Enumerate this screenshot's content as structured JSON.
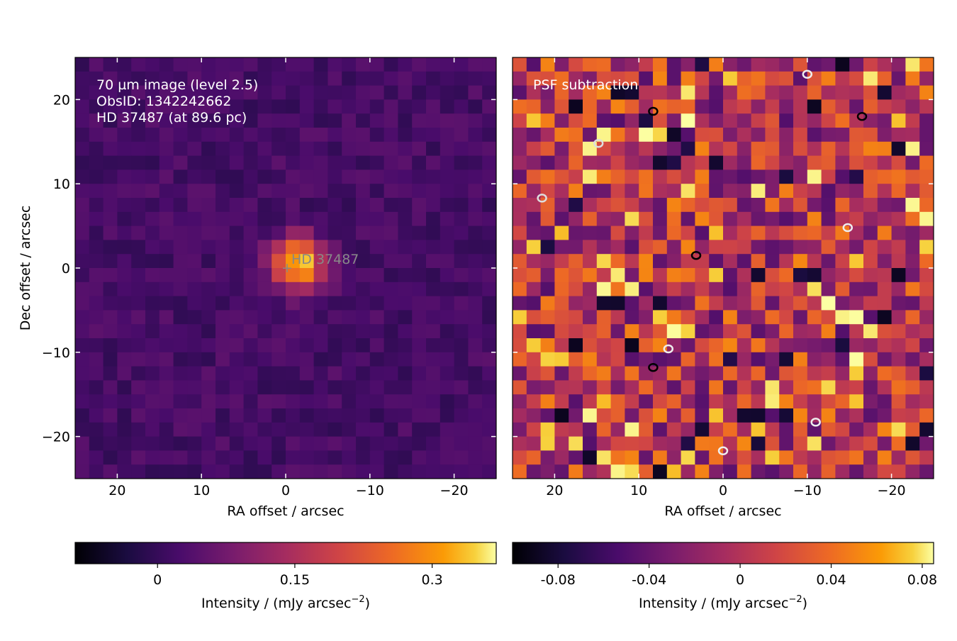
{
  "chart_data": [
    {
      "type": "heatmap",
      "panel": "left",
      "annotation_lines": [
        "70 µm image (level 2.5)",
        "ObsID: 1342242662",
        "HD 37487 (at 89.6 pc)"
      ],
      "source_label": "HD  37487",
      "source_marker": "+",
      "source_position": {
        "ra_offset": 0,
        "dec_offset": 0
      },
      "xlabel": "RA offset / arcsec",
      "ylabel": "Dec offset / arcsec",
      "x_ticks": [
        20,
        10,
        0,
        -10,
        -20
      ],
      "x_tick_labels": [
        "20",
        "10",
        "0",
        "−10",
        "−20"
      ],
      "y_ticks": [
        20,
        10,
        0,
        -10,
        -20
      ],
      "y_tick_labels": [
        "20",
        "10",
        "0",
        "−10",
        "−20"
      ],
      "xlim": [
        25,
        -25
      ],
      "ylim": [
        -25,
        25
      ],
      "grid": false,
      "colormap": "inferno",
      "colorbar": {
        "label": "Intensity / (mJy arcsec",
        "label_exponent": "−2",
        "label_suffix": ")",
        "range": [
          -0.09,
          0.37
        ],
        "ticks": [
          0,
          0.15,
          0.3
        ],
        "tick_labels": [
          "0",
          "0.15",
          "0.3"
        ]
      }
    },
    {
      "type": "heatmap",
      "panel": "right",
      "annotation_lines": [
        "PSF subtraction"
      ],
      "xlabel": "RA offset / arcsec",
      "x_ticks": [
        20,
        10,
        0,
        -10,
        -20
      ],
      "x_tick_labels": [
        "20",
        "10",
        "0",
        "−10",
        "−20"
      ],
      "xlim": [
        25,
        -25
      ],
      "ylim": [
        -25,
        25
      ],
      "grid": false,
      "colormap": "inferno",
      "contours": "black and white contours on residual map",
      "colorbar": {
        "label": "Intensity / (mJy arcsec",
        "label_exponent": "−2",
        "label_suffix": ")",
        "range": [
          -0.1,
          0.085
        ],
        "ticks": [
          -0.08,
          -0.04,
          0,
          0.04,
          0.08
        ],
        "tick_labels": [
          "-0.08",
          "-0.04",
          "0",
          "0.04",
          "0.08"
        ]
      }
    }
  ]
}
